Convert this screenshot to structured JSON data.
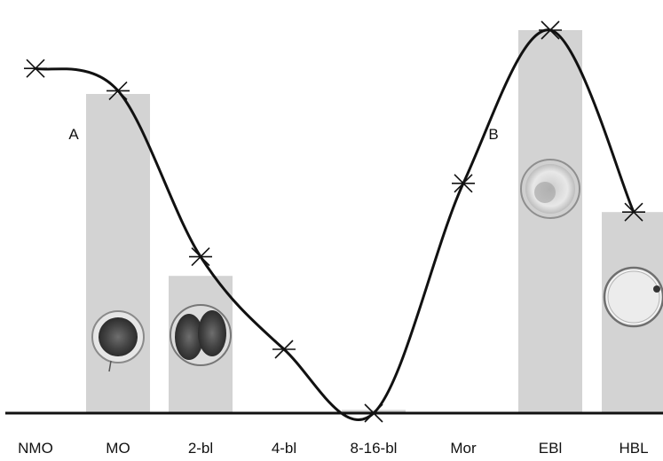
{
  "chart_data": {
    "type": "bar",
    "categories": [
      "NMO",
      "MO",
      "2-bl",
      "4-bl",
      "8-16-bl",
      "Mor",
      "EBl",
      "HBL"
    ],
    "bars": {
      "values": [
        null,
        100,
        43,
        null,
        1,
        null,
        120,
        63
      ],
      "color": "#d3d3d3"
    },
    "line": {
      "values": [
        108,
        101,
        49,
        20,
        0,
        72,
        120,
        63
      ],
      "color": "#111111",
      "marker": "asterisk"
    },
    "ylim": [
      0,
      125
    ],
    "annotations": [
      {
        "text": "A",
        "category": "MO",
        "position": "left of bar"
      },
      {
        "text": "B",
        "category": "Mor",
        "position": "right of point"
      }
    ],
    "embryo_images": [
      "MO",
      "2-bl",
      "EBl",
      "HBL"
    ],
    "grid": false,
    "legend": "none"
  }
}
